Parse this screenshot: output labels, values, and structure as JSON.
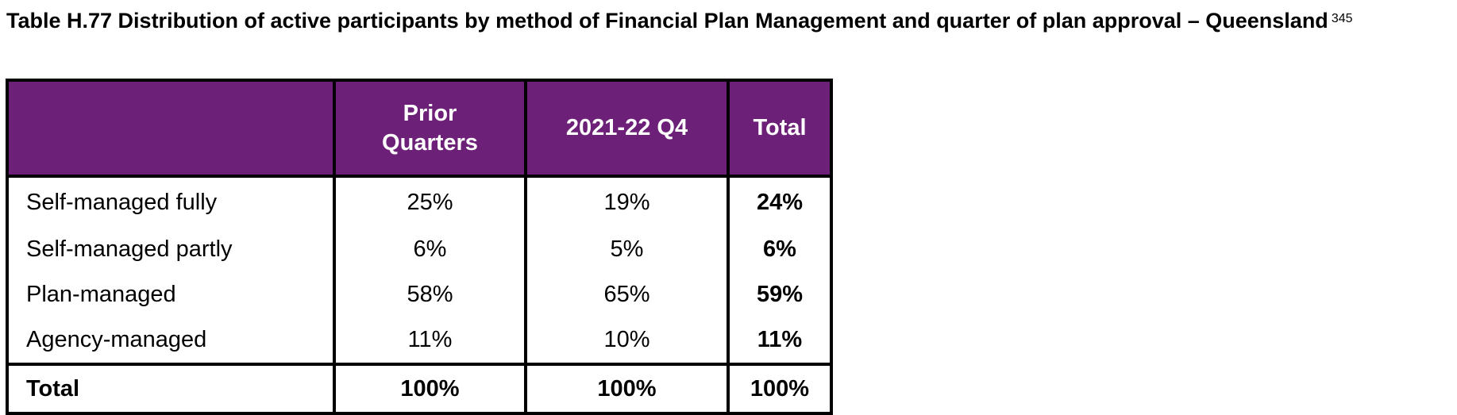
{
  "caption": {
    "title": "Table H.77 Distribution of active participants by method of Financial Plan Management and quarter of plan approval – Queensland",
    "footnote_ref": "345"
  },
  "table": {
    "header": {
      "row_label": "",
      "prior_quarters_line1": "Prior",
      "prior_quarters_line2": "Quarters",
      "q4": "2021-22 Q4",
      "total": "Total"
    },
    "rows": [
      {
        "label": "Self-managed fully",
        "prior": "25%",
        "q4": "19%",
        "total": "24%"
      },
      {
        "label": "Self-managed partly",
        "prior": "6%",
        "q4": "5%",
        "total": "6%"
      },
      {
        "label": "Plan-managed",
        "prior": "58%",
        "q4": "65%",
        "total": "59%"
      },
      {
        "label": "Agency-managed",
        "prior": "11%",
        "q4": "10%",
        "total": "11%"
      }
    ],
    "total_row": {
      "label": "Total",
      "prior": "100%",
      "q4": "100%",
      "total": "100%"
    }
  },
  "colors": {
    "header_bg": "#6d2077",
    "header_text": "#ffffff",
    "border": "#000000"
  }
}
